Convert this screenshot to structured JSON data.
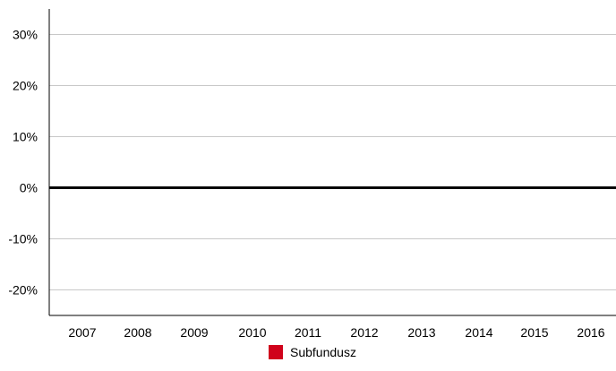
{
  "chart_data": {
    "type": "bar",
    "title": "",
    "xlabel": "",
    "ylabel": "",
    "categories": [
      "2007",
      "2008",
      "2009",
      "2010",
      "2011",
      "2012",
      "2013",
      "2014",
      "2015",
      "2016"
    ],
    "series": [
      {
        "name": "Subfundusz",
        "color": "#d0021b",
        "values": [
          0,
          0,
          0,
          0,
          0,
          0,
          0,
          0,
          0,
          0
        ]
      }
    ],
    "ylim": [
      -25,
      35
    ],
    "yticks": [
      30,
      20,
      10,
      0,
      -10,
      -20
    ],
    "ytick_labels": [
      "30%",
      "20%",
      "10%",
      "0%",
      "-10%",
      "-20%"
    ],
    "grid": true,
    "legend_position": "bottom-center"
  },
  "colors": {
    "grid": "#c8c8c8",
    "axis": "#000000",
    "zero_line": "#000000"
  }
}
